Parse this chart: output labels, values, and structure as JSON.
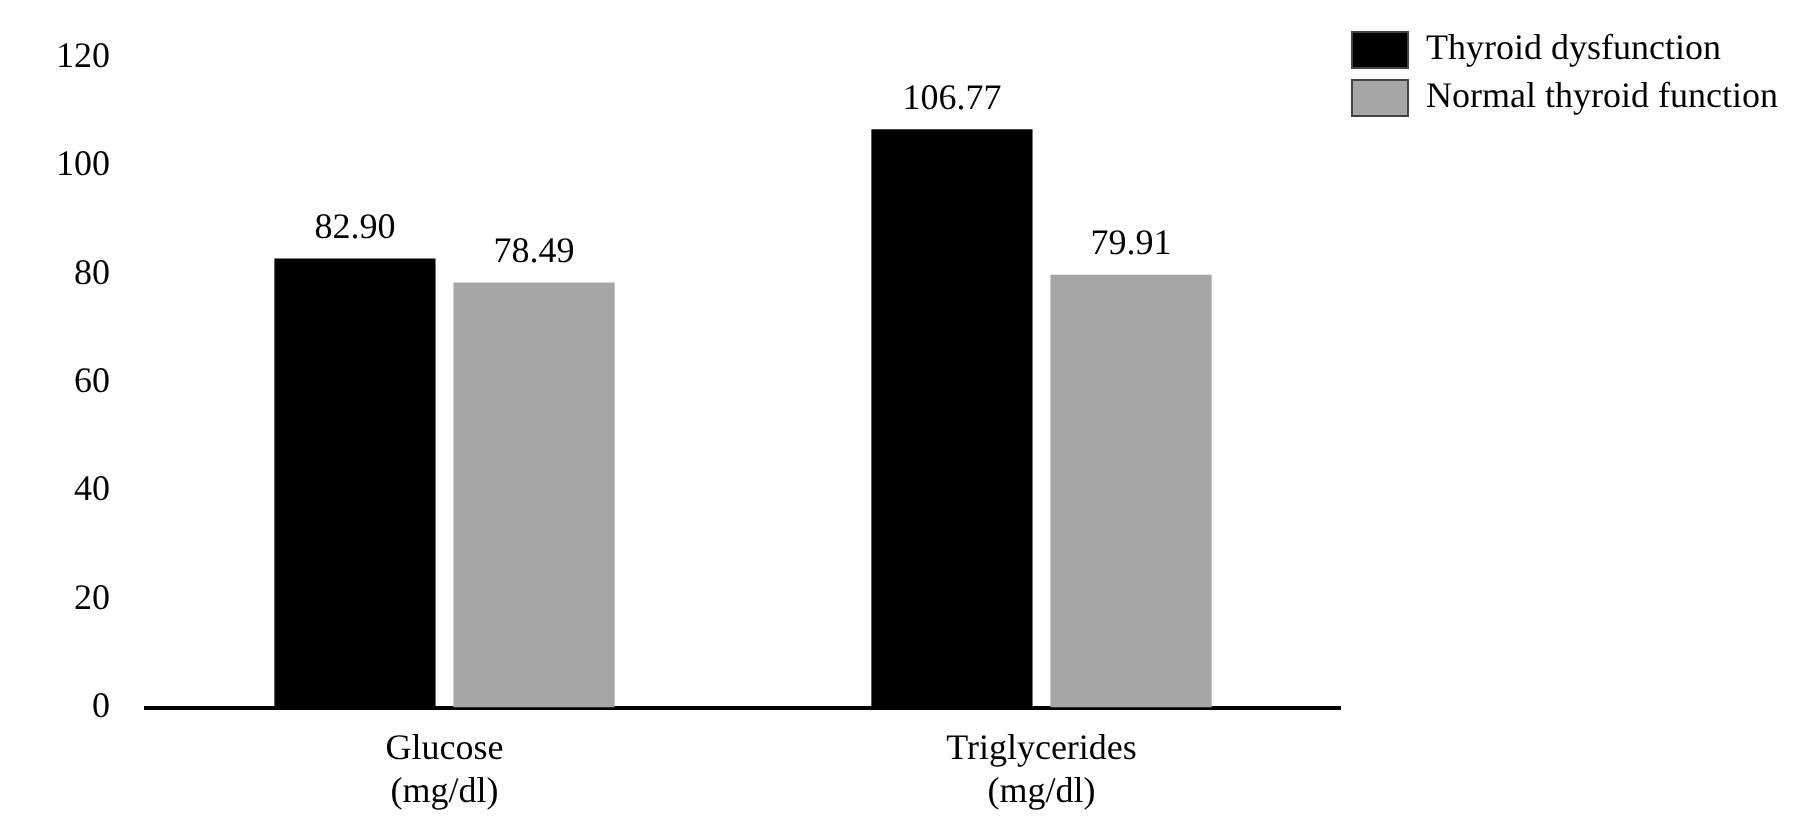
{
  "chart_data": {
    "type": "bar",
    "categories": [
      "Glucose\n(mg/dl)",
      "Triglycerides\n(mg/dl)"
    ],
    "series": [
      {
        "name": "Thyroid dysfunction",
        "color": "#000000",
        "values": [
          82.9,
          106.77
        ],
        "value_labels": [
          "82.90",
          "106.77"
        ]
      },
      {
        "name": "Normal thyroid function",
        "color": "#a6a6a6",
        "values": [
          78.49,
          79.91
        ],
        "value_labels": [
          "78.49",
          "79.91"
        ]
      }
    ],
    "ylim": [
      0,
      120
    ],
    "yticks": [
      0,
      20,
      40,
      60,
      80,
      100,
      120
    ],
    "grid": false,
    "legend": "top right"
  }
}
